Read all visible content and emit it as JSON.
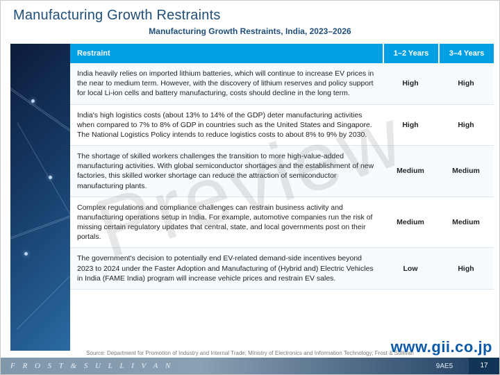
{
  "title": "Manufacturing Growth Restraints",
  "subtitle": "Manufacturing Growth Restraints, India, 2023–2026",
  "table": {
    "columns": {
      "restraint": "Restraint",
      "y1": "1–2 Years",
      "y2": "3–4 Years"
    },
    "header_bg": "#009fe3",
    "header_fg": "#ffffff",
    "row_border": "#d9e6ef",
    "rows": [
      {
        "restraint": "India heavily relies on imported lithium batteries, which will continue to increase EV prices in the near to medium term. However, with the discovery of lithium reserves and policy support for local Li-ion cells and battery manufacturing, costs should decline in the long term.",
        "y1": "High",
        "y2": "High"
      },
      {
        "restraint": "India's high logistics costs (about 13% to 14% of the GDP) deter manufacturing activities when compared to 7% to 8% of GDP in countries such as the United States and Singapore. The National Logistics Policy intends to reduce logistics costs to about 8% to 9% by 2030.",
        "y1": "High",
        "y2": "High"
      },
      {
        "restraint": "The shortage of skilled workers challenges the transition to more high-value-added manufacturing activities. With global semiconductor shortages and the establishment of new factories, this skilled worker shortage can reduce the attraction of semiconductor manufacturing plants.",
        "y1": "Medium",
        "y2": "Medium"
      },
      {
        "restraint": "Complex regulations and compliance challenges can restrain business activity and manufacturing operations setup in India. For example, automotive companies run the risk of missing certain regulatory updates that central, state, and local governments post on their portals.",
        "y1": "Medium",
        "y2": "Medium"
      },
      {
        "restraint": "The government's decision to potentially end EV-related demand-side incentives beyond 2023 to 2024 under the Faster Adoption and Manufacturing of (Hybrid and) Electric Vehicles in India (FAME India) program will increase vehicle prices and restrain EV sales.",
        "y1": "Low",
        "y2": "High"
      }
    ]
  },
  "source": "Source: Department for Promotion of Industry and Internal Trade; Ministry of Electronics and Information Technology; Frost & Sullivan",
  "watermark_preview": "Preview",
  "watermark_url": "www.gii.co.jp",
  "footer": {
    "brand_text": "F R O S T   &   S U L L I V A N",
    "code": "9AE5",
    "page_num": "17",
    "bg_gradient_left": "#7f98ac",
    "bg_gradient_right": "#1c3b5f"
  },
  "colors": {
    "title": "#1f4e79",
    "text": "#222222",
    "source": "#7a7a7a",
    "url_wm": "#0b5aa8"
  }
}
